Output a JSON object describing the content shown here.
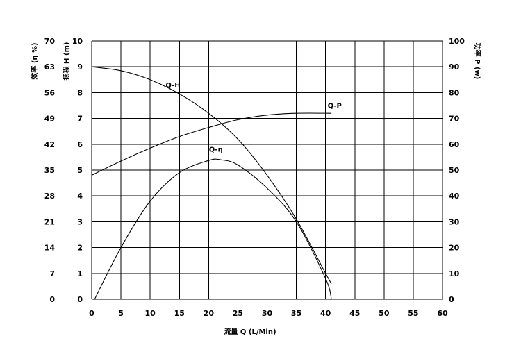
{
  "chart_data": {
    "type": "line",
    "xlabel": "流量 Q (L/Min)",
    "ylabel_left_outer": "效率 (η %)",
    "ylabel_left_inner": "扬程 H (m)",
    "ylabel_right": "功率 P (w)",
    "xlim": [
      0,
      60
    ],
    "x_ticks": [
      "0",
      "5",
      "10",
      "15",
      "20",
      "25",
      "30",
      "35",
      "40",
      "45",
      "50",
      "55",
      "60"
    ],
    "y_head_lim": [
      0,
      10
    ],
    "y_head_ticks": [
      "0",
      "1",
      "2",
      "3",
      "4",
      "5",
      "6",
      "7",
      "8",
      "9",
      "10"
    ],
    "y_eff_lim": [
      0,
      70
    ],
    "y_eff_ticks": [
      "0",
      "7",
      "14",
      "21",
      "28",
      "35",
      "42",
      "49",
      "56",
      "63",
      "70"
    ],
    "y_power_lim": [
      0,
      100
    ],
    "y_power_ticks": [
      "0",
      "10",
      "20",
      "30",
      "40",
      "50",
      "60",
      "70",
      "80",
      "90",
      "100"
    ],
    "grid": true,
    "series": [
      {
        "name": "Q-H",
        "axis": "head",
        "x": [
          0,
          5,
          10,
          15,
          20,
          25,
          30,
          35,
          40,
          41
        ],
        "values": [
          9.0,
          8.85,
          8.5,
          7.95,
          7.2,
          6.2,
          4.8,
          3.1,
          1.0,
          0.6
        ]
      },
      {
        "name": "Q-P",
        "axis": "power",
        "x": [
          0,
          5,
          10,
          15,
          20,
          25,
          30,
          35,
          41
        ],
        "values": [
          48,
          53.5,
          58.5,
          63,
          66.5,
          69.5,
          71.3,
          72,
          72
        ]
      },
      {
        "name": "Q-η",
        "axis": "efficiency",
        "x": [
          0.5,
          5,
          10,
          15,
          20,
          22,
          25,
          30,
          35,
          40,
          41
        ],
        "values": [
          0,
          14,
          26.6,
          34.3,
          37.6,
          37.8,
          36.4,
          30.1,
          21,
          5.6,
          0
        ]
      }
    ]
  }
}
